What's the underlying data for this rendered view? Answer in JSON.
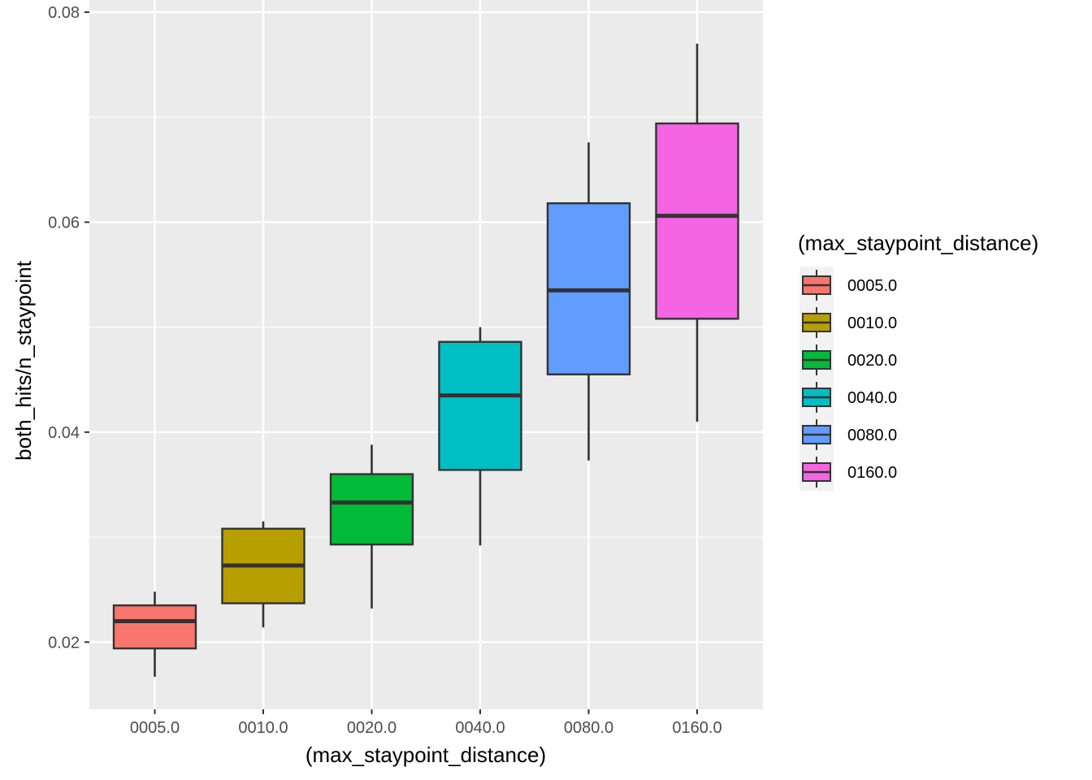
{
  "chart_data": {
    "type": "boxplot",
    "xlabel": "(max_staypoint_distance)",
    "ylabel": "both_hits/n_staypoint",
    "ylim": [
      0.0136,
      0.08
    ],
    "yticks": [
      0.02,
      0.04,
      0.06,
      0.08
    ],
    "grid": true,
    "legend": {
      "title": "(max_staypoint_distance)",
      "position": "right"
    },
    "categories": [
      "0005.0",
      "0010.0",
      "0020.0",
      "0040.0",
      "0080.0",
      "0160.0"
    ],
    "boxes": [
      {
        "category": "0005.0",
        "lower_whisker": 0.0167,
        "q1": 0.0194,
        "median": 0.022,
        "q3": 0.0235,
        "upper_whisker": 0.0248,
        "color": "#F8766D"
      },
      {
        "category": "0010.0",
        "lower_whisker": 0.0214,
        "q1": 0.0237,
        "median": 0.0273,
        "q3": 0.0308,
        "upper_whisker": 0.0315,
        "color": "#B79F00"
      },
      {
        "category": "0020.0",
        "lower_whisker": 0.0232,
        "q1": 0.0293,
        "median": 0.0333,
        "q3": 0.036,
        "upper_whisker": 0.0388,
        "color": "#00BA38"
      },
      {
        "category": "0040.0",
        "lower_whisker": 0.0292,
        "q1": 0.0364,
        "median": 0.0435,
        "q3": 0.0486,
        "upper_whisker": 0.05,
        "color": "#00BFC4"
      },
      {
        "category": "0080.0",
        "lower_whisker": 0.0373,
        "q1": 0.0455,
        "median": 0.0535,
        "q3": 0.0618,
        "upper_whisker": 0.0676,
        "color": "#619CFF"
      },
      {
        "category": "0160.0",
        "lower_whisker": 0.041,
        "q1": 0.0508,
        "median": 0.0606,
        "q3": 0.0694,
        "upper_whisker": 0.077,
        "color": "#F564E3"
      }
    ]
  }
}
